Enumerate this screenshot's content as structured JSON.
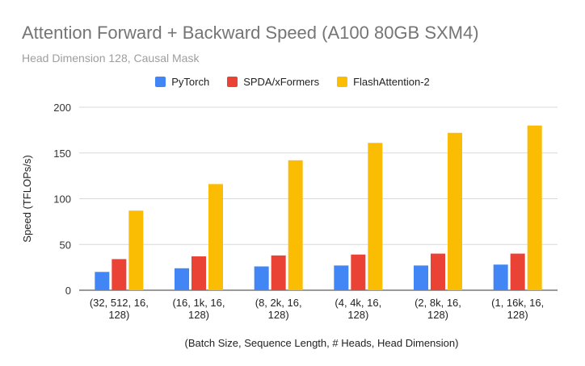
{
  "chart_data": {
    "type": "bar",
    "title": "Attention Forward + Backward Speed (A100 80GB SXM4)",
    "subtitle": "Head Dimension 128, Causal Mask",
    "xlabel": "(Batch Size, Sequence Length, # Heads, Head Dimension)",
    "ylabel": "Speed (TFLOPs/s)",
    "ylim": [
      0,
      200
    ],
    "yticks": [
      0,
      50,
      100,
      150,
      200
    ],
    "grid": true,
    "legend_position": "top-center",
    "categories": [
      [
        "(32, 512, 16,",
        "128)"
      ],
      [
        "(16, 1k, 16,",
        "128)"
      ],
      [
        "(8, 2k, 16,",
        "128)"
      ],
      [
        "(4, 4k, 16,",
        "128)"
      ],
      [
        "(2, 8k, 16,",
        "128)"
      ],
      [
        "(1, 16k, 16,",
        "128)"
      ]
    ],
    "series": [
      {
        "name": "PyTorch",
        "color": "#4285f4",
        "values": [
          20,
          24,
          26,
          27,
          27,
          28
        ]
      },
      {
        "name": "SPDA/xFormers",
        "color": "#ea4335",
        "values": [
          34,
          37,
          38,
          39,
          40,
          40
        ]
      },
      {
        "name": "FlashAttention-2",
        "color": "#fbbc04",
        "values": [
          87,
          116,
          142,
          161,
          172,
          180
        ]
      }
    ]
  }
}
